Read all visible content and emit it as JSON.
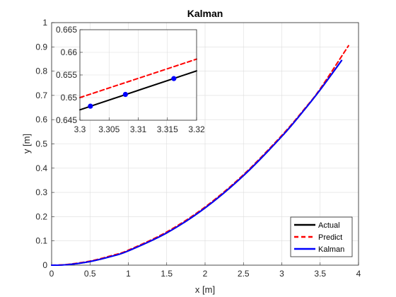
{
  "chart_data": [
    {
      "type": "line",
      "title": "Kalman",
      "xlabel": "x [m]",
      "ylabel": "y [m]",
      "xlim": [
        0,
        4
      ],
      "ylim": [
        0,
        1
      ],
      "xticks": [
        "0",
        "0.5",
        "1",
        "1.5",
        "2",
        "2.5",
        "3",
        "3.5",
        "4"
      ],
      "yticks": [
        "0",
        "0.1",
        "0.2",
        "0.3",
        "0.4",
        "0.5",
        "0.6",
        "0.7",
        "0.8",
        "0.9",
        "1"
      ],
      "grid": true,
      "legend": "bottom-right",
      "series": [
        {
          "name": "Actual",
          "color": "#000000",
          "style": "solid",
          "x": [
            0,
            0.2,
            0.5,
            0.8,
            1.0,
            1.5,
            2.0,
            2.5,
            3.0,
            3.3,
            3.5,
            3.78
          ],
          "y": [
            0,
            0.002,
            0.015,
            0.038,
            0.059,
            0.133,
            0.236,
            0.369,
            0.531,
            0.643,
            0.723,
            0.844
          ]
        },
        {
          "name": "Predict",
          "color": "#ff0000",
          "style": "dashed",
          "x": [
            0,
            0.2,
            0.5,
            0.8,
            1.0,
            1.5,
            2.0,
            2.5,
            3.0,
            3.3,
            3.5,
            3.87
          ],
          "y": [
            0,
            0.003,
            0.017,
            0.041,
            0.062,
            0.137,
            0.24,
            0.373,
            0.535,
            0.646,
            0.727,
            0.905
          ]
        },
        {
          "name": "Kalman",
          "color": "#0000ff",
          "style": "solid",
          "x": [
            0,
            0.2,
            0.5,
            0.8,
            1.0,
            1.5,
            2.0,
            2.5,
            3.0,
            3.3,
            3.5,
            3.78
          ],
          "y": [
            0,
            0.002,
            0.015,
            0.038,
            0.059,
            0.133,
            0.236,
            0.369,
            0.531,
            0.643,
            0.723,
            0.844
          ]
        }
      ]
    },
    {
      "type": "line",
      "xlim": [
        3.3,
        3.32
      ],
      "ylim": [
        0.645,
        0.665
      ],
      "xticks": [
        "3.3",
        "3.305",
        "3.31",
        "3.315",
        "3.32"
      ],
      "yticks": [
        "0.645",
        "0.65",
        "0.655",
        "0.66",
        "0.665"
      ],
      "grid": true,
      "series": [
        {
          "color": "#000000",
          "style": "solid",
          "x": [
            3.3,
            3.32
          ],
          "y": [
            0.6473,
            0.6559
          ]
        },
        {
          "color": "#ff0000",
          "style": "dashed",
          "x": [
            3.3,
            3.32
          ],
          "y": [
            0.65,
            0.6585
          ]
        },
        {
          "color": "#0000ff",
          "style": "markers",
          "x": [
            3.3018,
            3.3078,
            3.3161
          ],
          "y": [
            0.6481,
            0.6507,
            0.6542
          ]
        }
      ]
    }
  ]
}
